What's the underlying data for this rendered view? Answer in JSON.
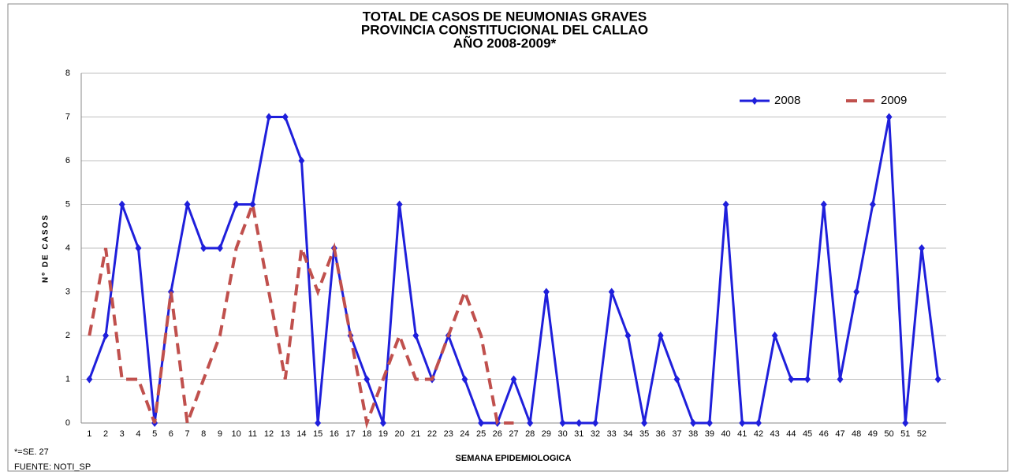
{
  "chart_data": {
    "type": "line",
    "title_lines": [
      "TOTAL DE CASOS DE NEUMONIAS GRAVES",
      "PROVINCIA CONSTITUCIONAL DEL CALLAO",
      "AÑO 2008-2009*"
    ],
    "x_label": "SEMANA EPIDEMIOLOGICA",
    "y_label": "Nº DE CASOS",
    "footnotes": [
      "*=SE. 27",
      "FUENTE: NOTI_SP"
    ],
    "categories": [
      "1",
      "2",
      "3",
      "4",
      "5",
      "6",
      "7",
      "8",
      "9",
      "10",
      "11",
      "12",
      "13",
      "14",
      "15",
      "16",
      "17",
      "18",
      "19",
      "20",
      "21",
      "22",
      "23",
      "24",
      "25",
      "26",
      "27",
      "28",
      "29",
      "30",
      "31",
      "32",
      "33",
      "34",
      "35",
      "36",
      "37",
      "38",
      "39",
      "40",
      "41",
      "42",
      "43",
      "44",
      "45",
      "46",
      "47",
      "48",
      "49",
      "50",
      "51",
      "52",
      null
    ],
    "series": [
      {
        "name": "2008",
        "color": "#1f1fdb",
        "style": "solid-diamond",
        "values": [
          1,
          2,
          5,
          4,
          0,
          3,
          5,
          4,
          4,
          5,
          5,
          7,
          7,
          6,
          0,
          4,
          2,
          1,
          0,
          5,
          2,
          1,
          2,
          1,
          0,
          0,
          1,
          0,
          3,
          0,
          0,
          0,
          3,
          2,
          0,
          2,
          1,
          0,
          0,
          5,
          0,
          0,
          2,
          1,
          1,
          5,
          1,
          3,
          5,
          7,
          0,
          4,
          1
        ]
      },
      {
        "name": "2009",
        "color": "#c0504d",
        "style": "dashed",
        "values": [
          2,
          4,
          1,
          1,
          0,
          3,
          0,
          1,
          2,
          4,
          5,
          3,
          1,
          4,
          3,
          4,
          2,
          0,
          1,
          2,
          1,
          1,
          2,
          3,
          2,
          0,
          0,
          null,
          null,
          null,
          null,
          null,
          null,
          null,
          null,
          null,
          null,
          null,
          null,
          null,
          null,
          null,
          null,
          null,
          null,
          null,
          null,
          null,
          null,
          null,
          null,
          null,
          null
        ]
      }
    ],
    "ylim": [
      0,
      8
    ],
    "yticks": [
      0,
      1,
      2,
      3,
      4,
      5,
      6,
      7,
      8
    ],
    "grid": true,
    "legend": "top-right"
  }
}
